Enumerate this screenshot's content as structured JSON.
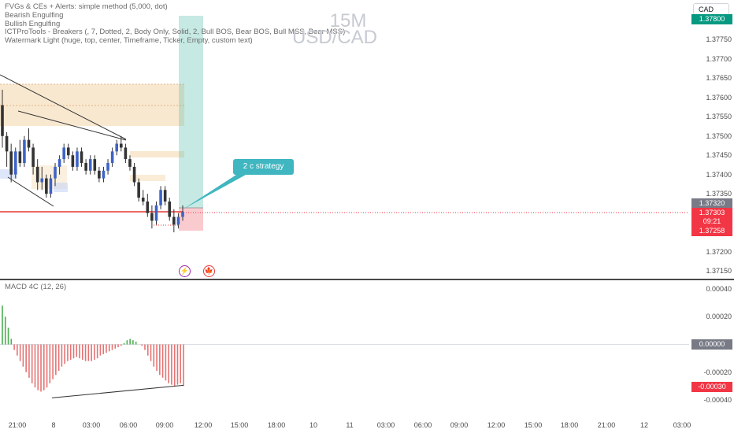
{
  "legend": [
    "FVGs & CEs + Alerts: simple method (5,000, dot)",
    "Bearish Engulfing",
    "Bullish Engulfing",
    "ICTProTools - Breakers (, 7, Dotted, 2, Body Only, Solid, 2, Bull BOS, Bear BOS, Bull MSS, Bear MSS)",
    "Watermark Light (huge, top, center, Timeframe, Ticker, Empty, custom text)"
  ],
  "watermark": {
    "timeframe": "15M",
    "symbol": "USD/CAD"
  },
  "currency_button": "CAD",
  "annotation": {
    "label": "2 c  strategy"
  },
  "event_icons": [
    {
      "name": "lightning-icon",
      "glyph": "⚡",
      "color": "#9c27b0"
    },
    {
      "name": "canada-flag-icon",
      "glyph": "🍁",
      "color": "#e53935"
    }
  ],
  "price_scale": {
    "ticks": [
      "1.37800",
      "1.37750",
      "1.37700",
      "1.37650",
      "1.37600",
      "1.37550",
      "1.37500",
      "1.37450",
      "1.37400",
      "1.37350",
      "1.37300",
      "1.37250",
      "1.37200",
      "1.37150"
    ],
    "badges": [
      {
        "name": "target-price-badge",
        "text": "1.37800",
        "color": "#089981"
      },
      {
        "name": "ask-price-badge",
        "text": "1.37320",
        "color": "#787b86"
      },
      {
        "name": "last-price-badge",
        "text": "1.37303",
        "color": "#f23645"
      },
      {
        "name": "countdown-badge",
        "text": "09:21",
        "color": "#f23645"
      },
      {
        "name": "stop-price-badge",
        "text": "1.37258",
        "color": "#f23645"
      }
    ]
  },
  "macd": {
    "title": "MACD 4C (12, 26)",
    "ticks": [
      "0.00040",
      "0.00020",
      "-0.00020",
      "-0.00040"
    ],
    "badges": [
      {
        "name": "macd-zero-badge",
        "text": "0.00000",
        "color": "#787b86"
      },
      {
        "name": "macd-value-badge",
        "text": "-0.00030",
        "color": "#f23645"
      }
    ]
  },
  "time_axis": [
    "21:00",
    "8",
    "03:00",
    "06:00",
    "09:00",
    "12:00",
    "15:00",
    "18:00",
    "10",
    "11",
    "03:00",
    "06:00",
    "09:00",
    "12:00",
    "15:00",
    "18:00",
    "21:00",
    "12",
    "03:00"
  ],
  "colors": {
    "up": "#26a69a",
    "down": "#ef5350",
    "fvg": "#f5d9b0",
    "target": "#5bbfb0",
    "stop": "#f28b95",
    "macd_up": "#4caf50",
    "macd_down": "#e57373"
  },
  "candles": [
    [
      1.3758,
      1.3762,
      1.3747,
      1.375
    ],
    [
      1.375,
      1.3751,
      1.3742,
      1.3746
    ],
    [
      1.3746,
      1.3748,
      1.3738,
      1.374
    ],
    [
      1.374,
      1.3747,
      1.3739,
      1.3746
    ],
    [
      1.3746,
      1.3749,
      1.3742,
      1.3743
    ],
    [
      1.3743,
      1.375,
      1.3742,
      1.3749
    ],
    [
      1.3749,
      1.3752,
      1.3746,
      1.3747
    ],
    [
      1.3747,
      1.3748,
      1.374,
      1.3742
    ],
    [
      1.3742,
      1.3744,
      1.3736,
      1.3738
    ],
    [
      1.3738,
      1.3742,
      1.3736,
      1.3739
    ],
    [
      1.3739,
      1.374,
      1.3734,
      1.3735
    ],
    [
      1.3735,
      1.374,
      1.3734,
      1.3739
    ],
    [
      1.3739,
      1.3743,
      1.3737,
      1.3742
    ],
    [
      1.3742,
      1.3745,
      1.374,
      1.3744
    ],
    [
      1.3744,
      1.3748,
      1.3743,
      1.3747
    ],
    [
      1.3747,
      1.3748,
      1.3744,
      1.3745
    ],
    [
      1.3745,
      1.3746,
      1.3741,
      1.3742
    ],
    [
      1.3742,
      1.3747,
      1.3741,
      1.3746
    ],
    [
      1.3746,
      1.3747,
      1.3742,
      1.3743
    ],
    [
      1.3743,
      1.3744,
      1.374,
      1.3741
    ],
    [
      1.3741,
      1.3745,
      1.374,
      1.3744
    ],
    [
      1.3744,
      1.3745,
      1.374,
      1.3741
    ],
    [
      1.3741,
      1.3742,
      1.3738,
      1.3739
    ],
    [
      1.3739,
      1.3742,
      1.3738,
      1.3741
    ],
    [
      1.3741,
      1.3744,
      1.374,
      1.3743
    ],
    [
      1.3743,
      1.3747,
      1.3742,
      1.3746
    ],
    [
      1.3746,
      1.3749,
      1.3745,
      1.3748
    ],
    [
      1.3748,
      1.375,
      1.3746,
      1.3747
    ],
    [
      1.3747,
      1.3748,
      1.3743,
      1.3744
    ],
    [
      1.3744,
      1.3745,
      1.3741,
      1.3742
    ],
    [
      1.3742,
      1.3743,
      1.3737,
      1.3738
    ],
    [
      1.3738,
      1.3739,
      1.3733,
      1.3734
    ],
    [
      1.3734,
      1.3736,
      1.3732,
      1.3733
    ],
    [
      1.3733,
      1.3735,
      1.3729,
      1.373
    ],
    [
      1.373,
      1.3732,
      1.3726,
      1.3728
    ],
    [
      1.3728,
      1.3733,
      1.3727,
      1.3732
    ],
    [
      1.3732,
      1.3737,
      1.3731,
      1.3736
    ],
    [
      1.3736,
      1.3737,
      1.3732,
      1.3733
    ],
    [
      1.3733,
      1.3734,
      1.3728,
      1.3729
    ],
    [
      1.3729,
      1.3731,
      1.3725,
      1.3727
    ],
    [
      1.3727,
      1.373,
      1.3726,
      1.3729
    ],
    [
      1.3729,
      1.3732,
      1.3728,
      1.37303
    ]
  ],
  "macd_values": [
    0.00028,
    0.0002,
    0.00012,
    4e-05,
    -4e-05,
    -8e-05,
    -0.00012,
    -0.00016,
    -0.0002,
    -0.00024,
    -0.00028,
    -0.00031,
    -0.00033,
    -0.00034,
    -0.00033,
    -0.00031,
    -0.00028,
    -0.00025,
    -0.00022,
    -0.00019,
    -0.00016,
    -0.00014,
    -0.00012,
    -0.00011,
    -0.0001,
    -9e-05,
    -0.0001,
    -0.00011,
    -0.00012,
    -0.00012,
    -0.00012,
    -0.00011,
    -0.0001,
    -8e-05,
    -7e-05,
    -6e-05,
    -5e-05,
    -4e-05,
    -3e-05,
    -2e-05,
    -1e-05,
    1e-05,
    3e-05,
    4e-05,
    3e-05,
    2e-05,
    0.0,
    -1e-05,
    -4e-05,
    -8e-05,
    -0.00012,
    -0.00016,
    -0.00019,
    -0.00022,
    -0.00024,
    -0.00026,
    -0.00028,
    -0.00029,
    -0.0003,
    -0.00029,
    -0.00028,
    -0.0003
  ]
}
